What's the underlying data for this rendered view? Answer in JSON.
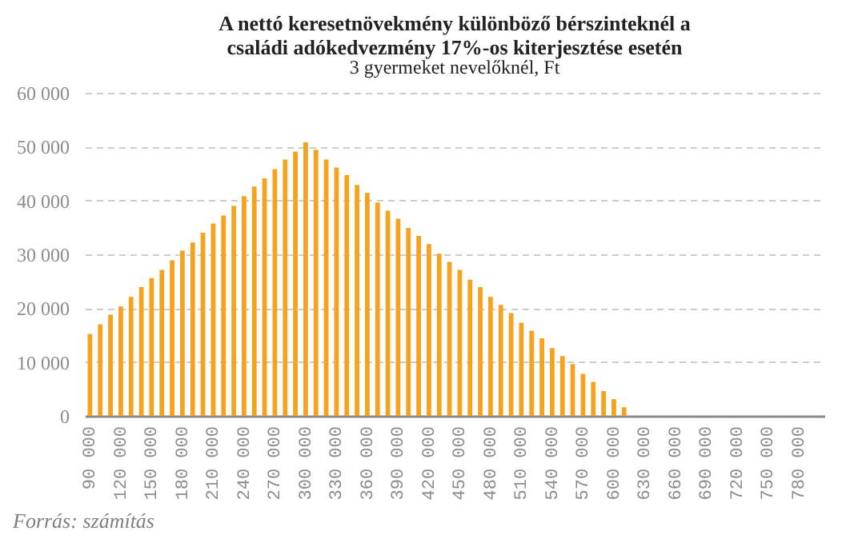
{
  "chart_data": {
    "type": "bar",
    "title": [
      "A nettó keresetnövekmény különböző bérszinteknél a",
      "családi adókedvezmény 17%-os kiterjesztése esetén"
    ],
    "subtitle": "3 gyermeket nevelőknél, Ft",
    "categories": [
      "90 000",
      null,
      null,
      "120 000",
      null,
      null,
      "150 000",
      null,
      null,
      "180 000",
      null,
      null,
      "210 000",
      null,
      null,
      "240 000",
      null,
      null,
      "270 000",
      null,
      null,
      "300 000",
      null,
      null,
      "330 000",
      null,
      null,
      "360 000",
      null,
      null,
      "390 000",
      null,
      null,
      "420 000",
      null,
      null,
      "450 000",
      null,
      null,
      "480 000",
      null,
      null,
      "510 000",
      null,
      null,
      "540 000",
      null,
      null,
      "570 000",
      null,
      null,
      "600 000",
      null,
      null,
      "630 000",
      null,
      null,
      "660 000",
      null,
      null,
      "690 000",
      null,
      null,
      "720 000",
      null,
      null,
      "750 000",
      null,
      null,
      "780 000",
      null,
      null
    ],
    "values": [
      15200,
      17000,
      18800,
      20300,
      22100,
      23900,
      25600,
      27100,
      28900,
      30700,
      32200,
      34000,
      35700,
      37200,
      39000,
      40800,
      42600,
      44100,
      45800,
      47600,
      49100,
      50800,
      49400,
      47600,
      46100,
      44700,
      42900,
      41400,
      39600,
      38100,
      36600,
      34900,
      33400,
      31900,
      30100,
      28600,
      27100,
      25300,
      23900,
      22100,
      20600,
      19100,
      17300,
      15800,
      14400,
      12600,
      11100,
      9600,
      7800,
      6300,
      4600,
      3100,
      1600,
      0,
      0,
      0,
      0,
      0,
      0,
      0,
      0,
      0,
      0,
      0,
      0,
      0,
      0,
      0,
      0,
      0,
      0,
      0
    ],
    "color": "#f5a31f",
    "ylim": [
      0,
      60000
    ],
    "yticks": [
      {
        "value": 0,
        "label": "0"
      },
      {
        "value": 10000,
        "label": "10 000"
      },
      {
        "value": 20000,
        "label": "20 000"
      },
      {
        "value": 30000,
        "label": "30 000"
      },
      {
        "value": 40000,
        "label": "40 000"
      },
      {
        "value": 50000,
        "label": "50 000"
      },
      {
        "value": 60000,
        "label": "60 000"
      }
    ],
    "grid": "y",
    "annotations": [
      "Forrás: számítás"
    ]
  }
}
